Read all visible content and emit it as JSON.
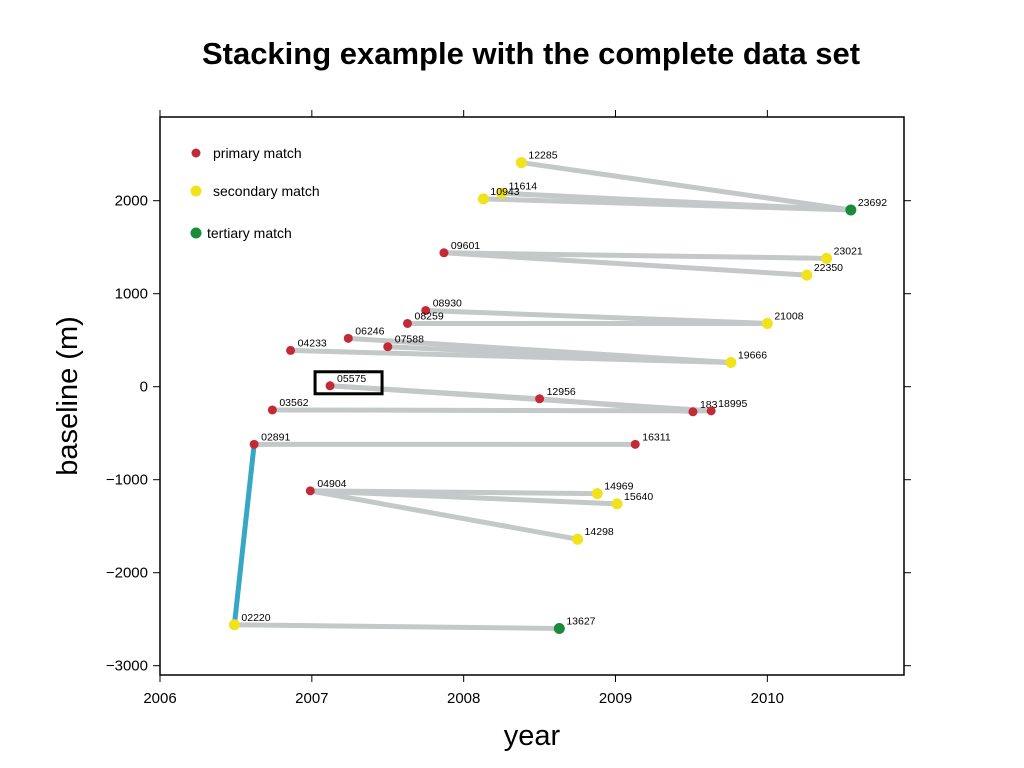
{
  "title": "Stacking example with the complete data set",
  "chart_data": {
    "type": "scatter",
    "xlabel": "year",
    "ylabel": "baseline (m)",
    "xlim": [
      2006,
      2010.9
    ],
    "ylim": [
      -3100,
      2900
    ],
    "x_ticks": [
      "2006",
      "2007",
      "2008",
      "2009",
      "2010"
    ],
    "y_ticks": [
      "−3000",
      "−2000",
      "−1000",
      "0",
      "1000",
      "2000"
    ],
    "grid": false,
    "legend_position": "top-left",
    "legend": [
      {
        "key": "primary",
        "label": "primary match",
        "color": "#c42a35"
      },
      {
        "key": "secondary",
        "label": "secondary match",
        "color": "#f2e21c"
      },
      {
        "key": "tertiary",
        "label": "tertiary match",
        "color": "#1a8b3b"
      }
    ],
    "colors": {
      "edge": "#c5c8c8",
      "highlight_edge": "#36a8c6",
      "highlight_box": "#000000"
    },
    "highlight_box_label": "05575",
    "points": [
      {
        "id": "12285",
        "x": 2008.38,
        "y": 2410,
        "type": "secondary"
      },
      {
        "id": "11614",
        "x": 2008.25,
        "y": 2080,
        "type": "secondary"
      },
      {
        "id": "10943",
        "x": 2008.13,
        "y": 2020,
        "type": "secondary"
      },
      {
        "id": "23692",
        "x": 2010.55,
        "y": 1900,
        "type": "tertiary"
      },
      {
        "id": "09601",
        "x": 2007.87,
        "y": 1440,
        "type": "primary"
      },
      {
        "id": "23021",
        "x": 2010.39,
        "y": 1380,
        "type": "secondary"
      },
      {
        "id": "22350",
        "x": 2010.26,
        "y": 1200,
        "type": "secondary"
      },
      {
        "id": "08930",
        "x": 2007.75,
        "y": 820,
        "type": "primary"
      },
      {
        "id": "08259",
        "x": 2007.63,
        "y": 680,
        "type": "primary"
      },
      {
        "id": "21008",
        "x": 2010.0,
        "y": 680,
        "type": "secondary"
      },
      {
        "id": "06246",
        "x": 2007.24,
        "y": 520,
        "type": "primary"
      },
      {
        "id": "07588",
        "x": 2007.5,
        "y": 430,
        "type": "primary"
      },
      {
        "id": "04233",
        "x": 2006.86,
        "y": 390,
        "type": "primary"
      },
      {
        "id": "19666",
        "x": 2009.76,
        "y": 260,
        "type": "secondary"
      },
      {
        "id": "05575",
        "x": 2007.12,
        "y": 10,
        "type": "primary"
      },
      {
        "id": "12956",
        "x": 2008.5,
        "y": -130,
        "type": "primary"
      },
      {
        "id": "03562",
        "x": 2006.74,
        "y": -250,
        "type": "primary"
      },
      {
        "id": "18324",
        "x": 2009.51,
        "y": -270,
        "type": "primary",
        "label": "183"
      },
      {
        "id": "18995",
        "x": 2009.63,
        "y": -260,
        "type": "primary",
        "label": "18995"
      },
      {
        "id": "02891",
        "x": 2006.62,
        "y": -620,
        "type": "primary"
      },
      {
        "id": "16311",
        "x": 2009.13,
        "y": -620,
        "type": "primary"
      },
      {
        "id": "04904",
        "x": 2006.99,
        "y": -1120,
        "type": "primary"
      },
      {
        "id": "14969",
        "x": 2008.88,
        "y": -1150,
        "type": "secondary"
      },
      {
        "id": "15640",
        "x": 2009.01,
        "y": -1260,
        "type": "secondary"
      },
      {
        "id": "14298",
        "x": 2008.75,
        "y": -1640,
        "type": "secondary"
      },
      {
        "id": "02220",
        "x": 2006.49,
        "y": -2560,
        "type": "secondary"
      },
      {
        "id": "13627",
        "x": 2008.63,
        "y": -2600,
        "type": "tertiary"
      }
    ],
    "edges": [
      [
        "12285",
        "23692"
      ],
      [
        "11614",
        "23692"
      ],
      [
        "10943",
        "23692"
      ],
      [
        "09601",
        "23021"
      ],
      [
        "09601",
        "22350"
      ],
      [
        "08930",
        "21008"
      ],
      [
        "08259",
        "21008"
      ],
      [
        "06246",
        "19666"
      ],
      [
        "07588",
        "19666"
      ],
      [
        "04233",
        "19666"
      ],
      [
        "05575",
        "12956"
      ],
      [
        "12956",
        "18324"
      ],
      [
        "05575",
        "18995"
      ],
      [
        "03562",
        "18995"
      ],
      [
        "02891",
        "16311"
      ],
      [
        "04904",
        "14969"
      ],
      [
        "04904",
        "15640"
      ],
      [
        "04904",
        "14298"
      ],
      [
        "02220",
        "13627"
      ]
    ],
    "highlight_edges": [
      [
        "02891",
        "02220"
      ]
    ]
  }
}
